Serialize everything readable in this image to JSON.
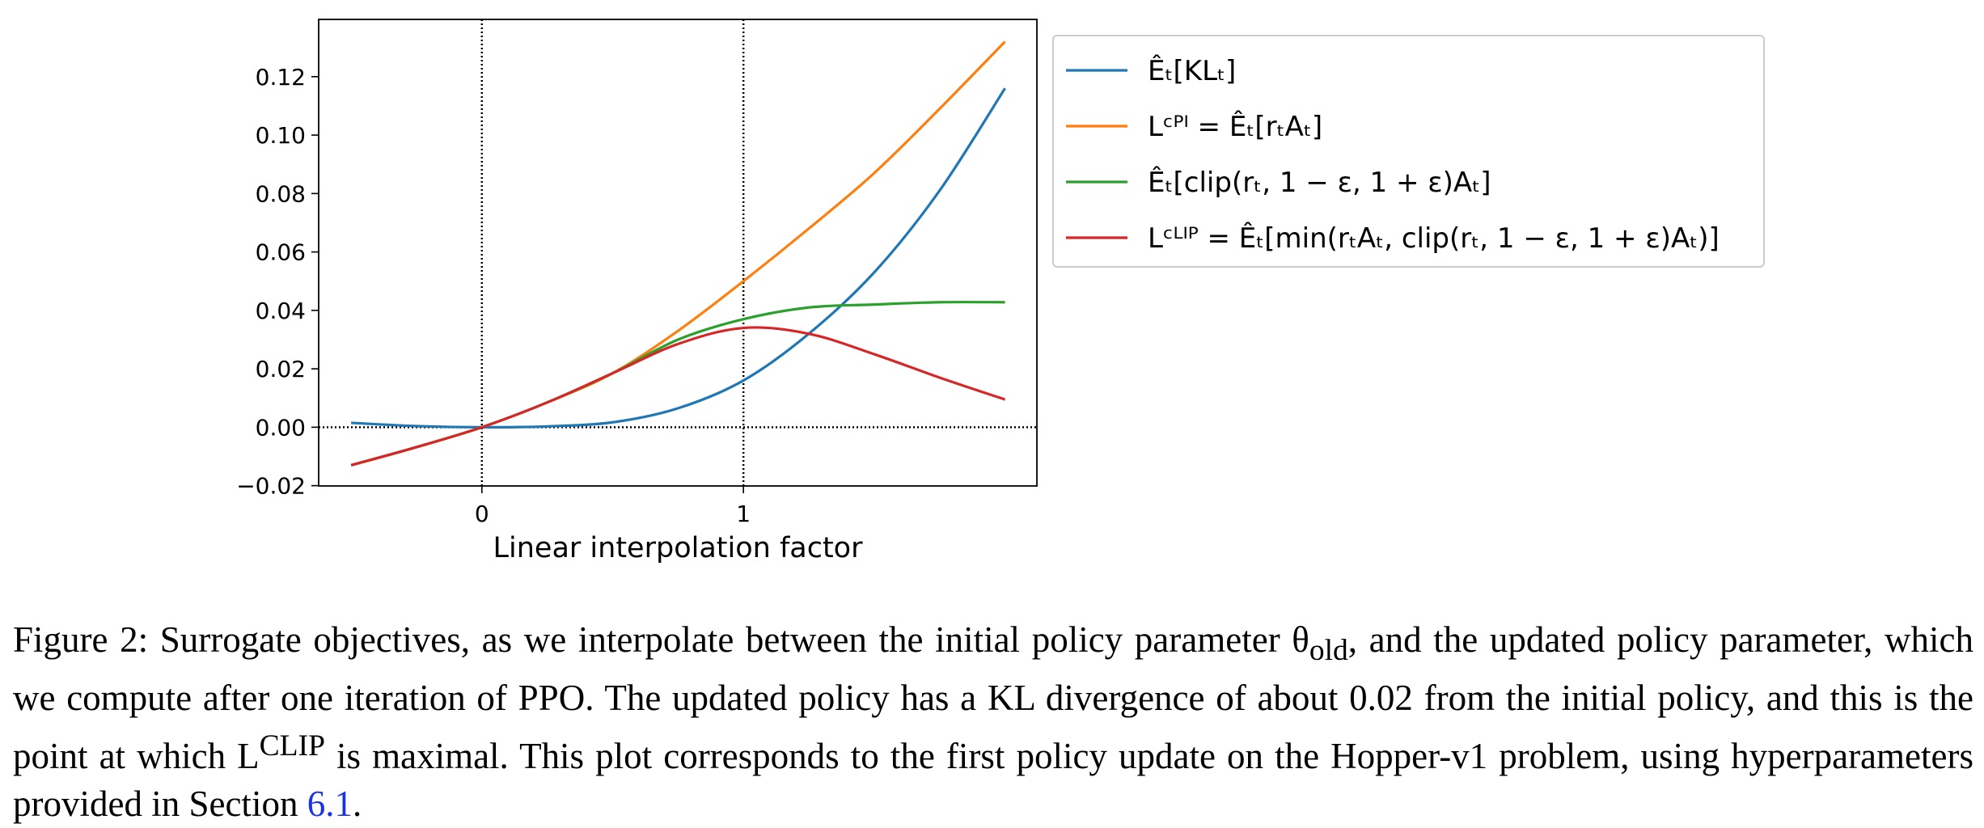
{
  "chart_data": {
    "type": "line",
    "x_label": "Linear interpolation factor",
    "x": [
      -0.5,
      -0.25,
      0,
      0.25,
      0.5,
      0.75,
      1,
      1.25,
      1.5,
      1.75,
      2
    ],
    "series": [
      {
        "name": "Êₜ[KLₜ]",
        "color": "#1f77b4",
        "values": [
          0.0015,
          0.0004,
          0,
          0.0003,
          0.0017,
          0.0065,
          0.016,
          0.032,
          0.053,
          0.081,
          0.116
        ]
      },
      {
        "name": "Lᶜᴾᴵ = Êₜ[rₜAₜ]",
        "color": "#ff7f0e",
        "values": [
          -0.013,
          -0.0068,
          0,
          0.0085,
          0.0185,
          0.033,
          0.05,
          0.068,
          0.087,
          0.109,
          0.132
        ]
      },
      {
        "name": "Êₜ[clip(rₜ, 1 − ε, 1 + ε)Aₜ]",
        "color": "#2ca02c",
        "values": [
          -0.013,
          -0.0068,
          0,
          0.0085,
          0.0185,
          0.03,
          0.037,
          0.041,
          0.042,
          0.0428,
          0.0428
        ]
      },
      {
        "name": "Lᶜᴸᴵᴾ = Êₜ[min(rₜAₜ, clip(rₜ, 1 − ε, 1 + ε)Aₜ)]",
        "color": "#d62728",
        "values": [
          -0.013,
          -0.0068,
          0,
          0.0085,
          0.0185,
          0.0285,
          0.034,
          0.032,
          0.025,
          0.017,
          0.0095
        ]
      }
    ],
    "xlim": [
      -0.624,
      2.122
    ],
    "ylim": [
      -0.0201,
      0.1396
    ],
    "xticks": [
      0,
      1
    ],
    "yticks": [
      {
        "value": -0.02,
        "label": "−0.02"
      },
      {
        "value": 0,
        "label": "0.00"
      },
      {
        "value": 0.02,
        "label": "0.02"
      },
      {
        "value": 0.04,
        "label": "0.04"
      },
      {
        "value": 0.06,
        "label": "0.06"
      },
      {
        "value": 0.08,
        "label": "0.08"
      },
      {
        "value": 0.1,
        "label": "0.10"
      },
      {
        "value": 0.12,
        "label": "0.12"
      }
    ],
    "vlines": [
      0,
      1
    ],
    "hlines": [
      0
    ],
    "legend": "outside right"
  },
  "caption": {
    "part1": "Figure 2: Surrogate objectives, as we interpolate between the initial policy parameter θ",
    "sub": "old",
    "part2": ", and the updated policy parameter, which we compute after one iteration of PPO. The updated policy has a KL divergence of about 0.02 from the initial policy, and this is the point at which L",
    "sup": "CLIP",
    "part3": " is maximal. This plot corresponds to the first policy update on the Hopper-v1 problem, using hyperparameters provided in Section ",
    "link": "6.1",
    "end": "."
  }
}
